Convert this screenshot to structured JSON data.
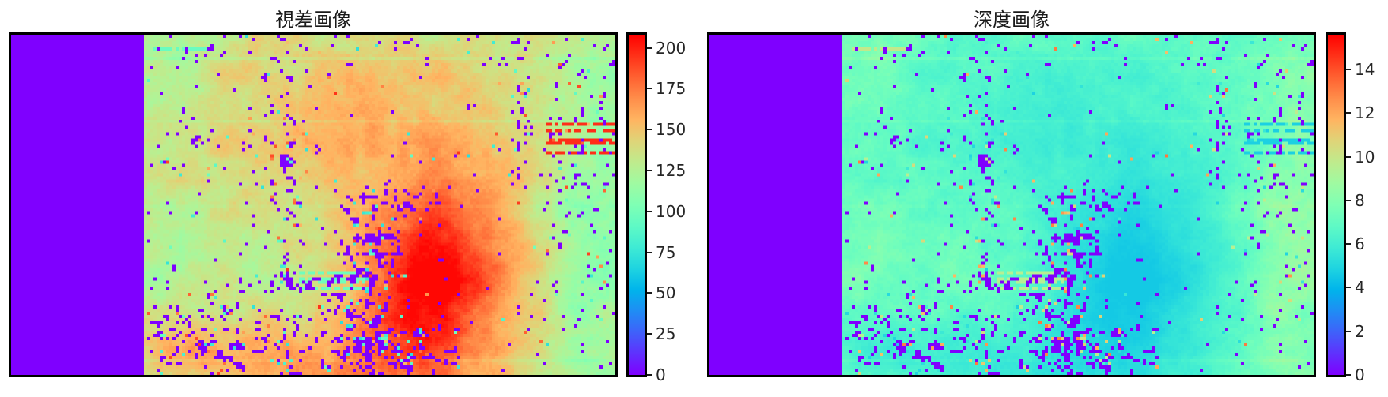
{
  "figure": {
    "background": "#ffffff",
    "axes_outline_color": "#000000",
    "tick_color": "#1a1a1a",
    "tick_label_color": "#262626",
    "invalid_region_color": "#8000ff"
  },
  "chart_data": [
    {
      "type": "heatmap",
      "title": "視差画像",
      "colormap": "rainbow",
      "value_range": [
        0,
        208
      ],
      "colorbar_ticks": [
        0,
        25,
        50,
        75,
        100,
        125,
        150,
        175,
        200
      ],
      "colorbar_tick_labels": [
        "0",
        "25",
        "50",
        "75",
        "100",
        "125",
        "150",
        "175",
        "200"
      ],
      "legend": "colorbar-right",
      "grid": false,
      "invalid_band": {
        "side": "left",
        "fraction": 0.22,
        "value": 0
      },
      "base_value": 124,
      "features": [
        {
          "name": "upper-left-tan-wall",
          "cx": 0.33,
          "cy": 0.26,
          "sx": 0.34,
          "sy": 0.34,
          "delta": 22
        },
        {
          "name": "upper-right-tan-wall",
          "cx": 0.7,
          "cy": 0.25,
          "sx": 0.28,
          "sy": 0.28,
          "delta": 18
        },
        {
          "name": "foreground-red-blob",
          "cx": 0.62,
          "cy": 0.73,
          "sx": 0.17,
          "sy": 0.28,
          "delta": 84
        },
        {
          "name": "bottom-orange-band",
          "cx": 0.38,
          "cy": 1.0,
          "sx": 0.28,
          "sy": 0.16,
          "delta": 38
        },
        {
          "name": "bottom-left-orange",
          "cx": 0.1,
          "cy": 0.92,
          "sx": 0.14,
          "sy": 0.1,
          "delta": 26
        },
        {
          "name": "right-strip-green",
          "cx": 0.95,
          "cy": 0.5,
          "sx": 0.09,
          "sy": 0.55,
          "delta": -14
        },
        {
          "name": "top-left-green",
          "cx": 0.05,
          "cy": 0.08,
          "sx": 0.12,
          "sy": 0.12,
          "delta": -10
        }
      ],
      "streaks": [
        {
          "name": "cyan-dashes-mid-left",
          "s0": 0.33,
          "s1": 0.47,
          "v0": 0.7,
          "v1": 0.75,
          "value": 98,
          "density": 0.55
        },
        {
          "name": "red-streaks-right-edge",
          "s0": 0.855,
          "s1": 1.0,
          "v0": 0.24,
          "v1": 0.4,
          "value": 196,
          "density": 0.32
        },
        {
          "name": "cyan-dash-top-left",
          "s0": 0.02,
          "s1": 0.14,
          "v0": 0.03,
          "v1": 0.06,
          "value": 95,
          "density": 0.5
        }
      ],
      "speckles": {
        "base_p": 0.03,
        "zero_share": 0.78,
        "low_range": [
          70,
          100
        ],
        "high_range": [
          150,
          195
        ],
        "clusters": [
          {
            "name": "blob-left-edge-upper",
            "cx": 0.48,
            "cy": 0.62,
            "sx": 0.06,
            "sy": 0.1,
            "p": 0.45
          },
          {
            "name": "blob-left-edge-lower",
            "cx": 0.46,
            "cy": 0.83,
            "sx": 0.07,
            "sy": 0.1,
            "p": 0.45
          },
          {
            "name": "blob-top-edge",
            "cx": 0.52,
            "cy": 0.5,
            "sx": 0.1,
            "sy": 0.05,
            "p": 0.3
          },
          {
            "name": "bottom-center",
            "cx": 0.5,
            "cy": 0.97,
            "sx": 0.18,
            "sy": 0.08,
            "p": 0.35
          },
          {
            "name": "bottom-left",
            "cx": 0.1,
            "cy": 0.9,
            "sx": 0.15,
            "sy": 0.11,
            "p": 0.3
          },
          {
            "name": "right-strip",
            "cx": 0.93,
            "cy": 0.4,
            "sx": 0.08,
            "sy": 0.35,
            "p": 0.16
          },
          {
            "name": "vertical-trunk",
            "cx": 0.31,
            "cy": 0.5,
            "sx": 0.02,
            "sy": 0.4,
            "p": 0.3
          },
          {
            "name": "vertical-line-right",
            "cx": 0.8,
            "cy": 0.22,
            "sx": 0.015,
            "sy": 0.28,
            "p": 0.28
          },
          {
            "name": "horizontal-dashes",
            "cx": 0.33,
            "cy": 0.73,
            "sx": 0.1,
            "sy": 0.025,
            "p": 0.4
          },
          {
            "name": "top-edge-scatter",
            "cx": 0.5,
            "cy": 0.03,
            "sx": 0.55,
            "sy": 0.05,
            "p": 0.1
          },
          {
            "name": "left-area-scatter",
            "cx": 0.15,
            "cy": 0.3,
            "sx": 0.15,
            "sy": 0.25,
            "p": 0.06
          }
        ]
      },
      "noise": {
        "coarse_amp": 8,
        "mid_amp": 6,
        "white_amp": 3,
        "row_amp": 10
      }
    },
    {
      "type": "heatmap",
      "title": "深度画像",
      "colormap": "rainbow",
      "value_range": [
        0,
        15.6
      ],
      "colorbar_ticks": [
        0,
        2,
        4,
        6,
        8,
        10,
        12,
        14
      ],
      "colorbar_tick_labels": [
        "0",
        "2",
        "4",
        "6",
        "8",
        "10",
        "12",
        "14"
      ],
      "legend": "colorbar-right",
      "grid": false,
      "invalid_band": {
        "side": "left",
        "fraction": 0.22,
        "value": 0
      },
      "derived": {
        "source": "disparity",
        "relation": "depth = 935 / disparity (clamped to range)",
        "constant": 935
      }
    }
  ]
}
